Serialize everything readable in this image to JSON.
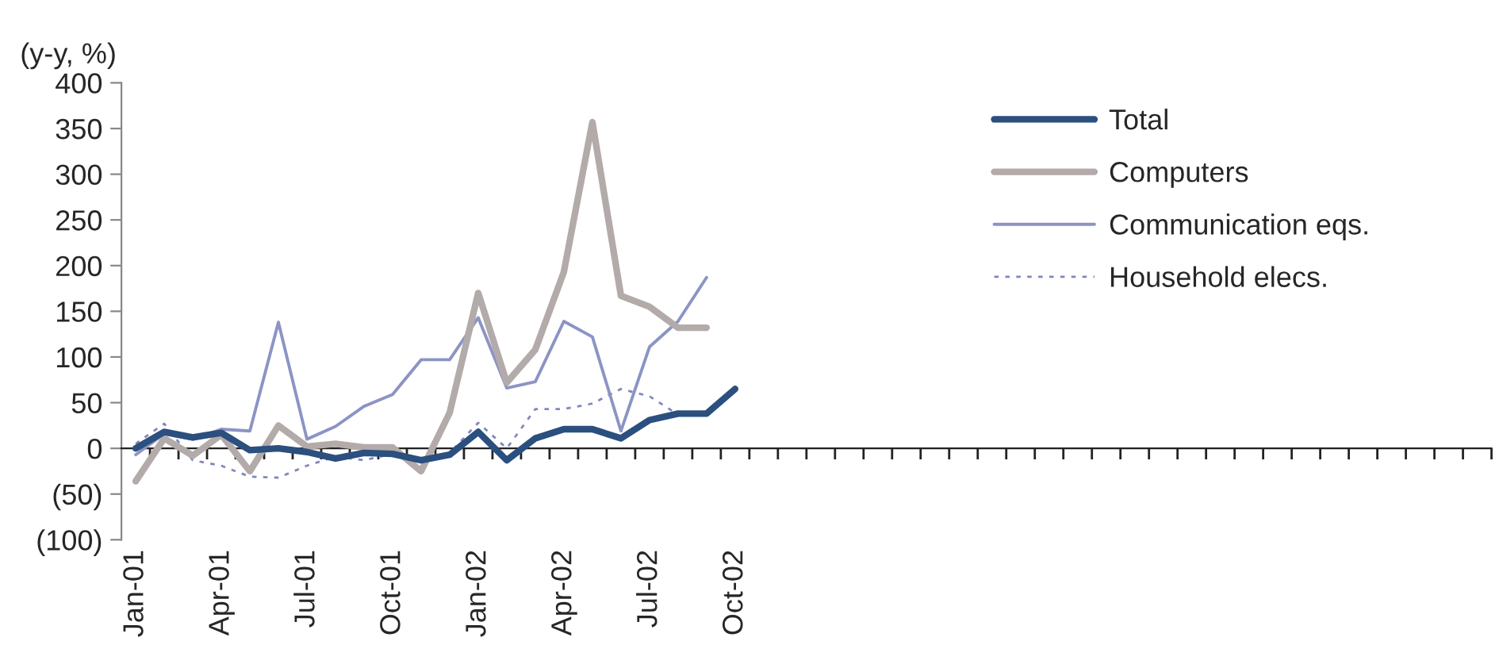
{
  "chart_data": {
    "type": "line",
    "ylabel": "(y-y, %)",
    "categories": [
      "Jan-01",
      null,
      null,
      "Apr-01",
      null,
      null,
      "Jul-01",
      null,
      null,
      "Oct-01",
      null,
      null,
      "Jan-02",
      null,
      null,
      "Apr-02",
      null,
      null,
      "Jul-02",
      null,
      null,
      "Oct-02",
      null,
      null,
      null,
      null,
      null,
      null,
      null,
      null,
      null,
      null,
      null,
      null,
      null,
      null,
      null,
      null,
      null,
      null,
      null,
      null,
      null,
      null,
      null,
      null,
      null,
      null
    ],
    "series": [
      {
        "name": "Total",
        "color": "#2b4f7e",
        "line_style": "solid",
        "values": [
          0,
          18,
          12,
          17,
          -2,
          0,
          -4,
          -11,
          -5,
          -6,
          -13,
          -7,
          18,
          -13,
          11,
          21,
          21,
          11,
          31,
          38,
          38,
          65,
          null,
          null,
          null,
          null,
          null,
          null,
          null,
          null,
          null,
          null,
          null,
          null,
          null,
          null,
          null,
          null,
          null,
          null,
          null,
          null,
          null,
          null,
          null,
          null,
          null,
          null
        ]
      },
      {
        "name": "Computers",
        "color": "#b3aaaa",
        "line_style": "solid",
        "values": [
          -36,
          11,
          -8,
          15,
          -25,
          25,
          2,
          5,
          1,
          1,
          -25,
          39,
          170,
          72,
          108,
          193,
          357,
          167,
          155,
          132,
          132,
          null,
          null,
          null,
          null,
          null,
          null,
          null,
          null,
          null,
          null,
          null,
          null,
          null,
          null,
          null,
          null,
          null,
          null,
          null,
          null,
          null,
          null,
          null,
          null,
          null,
          null,
          null
        ]
      },
      {
        "name": "Communication eqs.",
        "color": "#8c94c4",
        "line_style": "solid",
        "values": [
          -7,
          16,
          10,
          21,
          19,
          138,
          10,
          24,
          46,
          59,
          97,
          97,
          143,
          66,
          73,
          139,
          122,
          19,
          111,
          139,
          187,
          null,
          null,
          null,
          null,
          null,
          null,
          null,
          null,
          null,
          null,
          null,
          null,
          null,
          null,
          null,
          null,
          null,
          null,
          null,
          null,
          null,
          null,
          null,
          null,
          null,
          null,
          null
        ]
      },
      {
        "name": "Household elecs.",
        "color": "#8088bb",
        "line_style": "dashed",
        "values": [
          5,
          27,
          -13,
          -19,
          -31,
          -32,
          -19,
          -9,
          -13,
          -6,
          -13,
          -5,
          28,
          0,
          43,
          43,
          49,
          65,
          57,
          37,
          40,
          null,
          null,
          null,
          null,
          null,
          null,
          null,
          null,
          null,
          null,
          null,
          null,
          null,
          null,
          null,
          null,
          null,
          null,
          null,
          null,
          null,
          null,
          null,
          null,
          null,
          null,
          null
        ]
      }
    ],
    "ylim": [
      -100,
      400
    ],
    "yticks": [
      {
        "value": -100,
        "label": "(100)"
      },
      {
        "value": -50,
        "label": "(50)"
      },
      0,
      50,
      100,
      150,
      200,
      250,
      300,
      350,
      400
    ],
    "legend": "top right",
    "marker": "none"
  }
}
